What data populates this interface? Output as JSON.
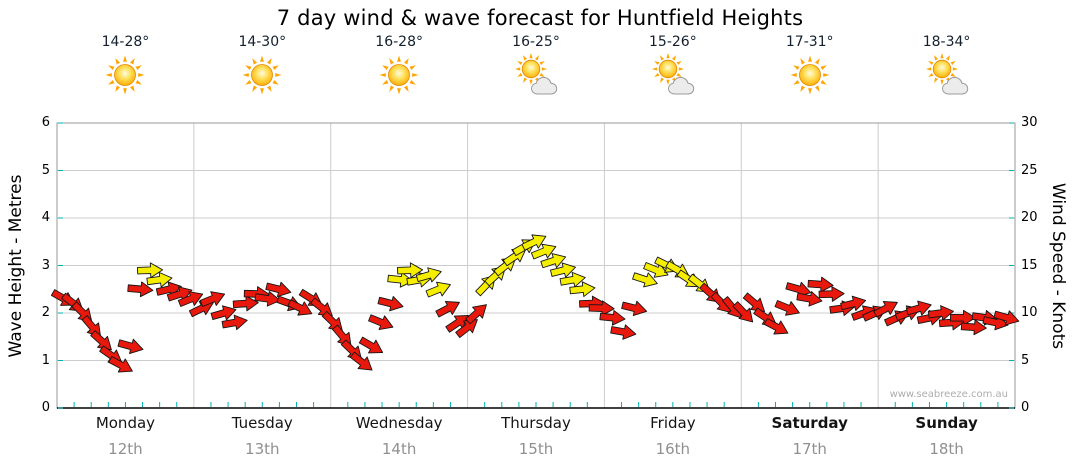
{
  "title": "7 day wind & wave forecast for Huntfield Heights",
  "watermark": "www.seabreeze.com.au",
  "colors": {
    "red": "#e8180c",
    "yellow": "#f6ee00",
    "grid": "#cccccc",
    "tick": "#00b3b3",
    "axis": "#000000",
    "border": "#999999",
    "date": "#909090",
    "temp": "#13202e"
  },
  "axes": {
    "left_label": "Wave Height - Metres",
    "right_label": "Wind Speed - Knots",
    "left_ticks": [
      "0",
      "1",
      "2",
      "3",
      "4",
      "5",
      "6"
    ],
    "right_ticks": [
      "0",
      "5",
      "10",
      "15",
      "20",
      "25",
      "30"
    ],
    "left_range": [
      0,
      6
    ],
    "right_range": [
      0,
      30
    ]
  },
  "days": [
    {
      "name": "Monday",
      "date": "12th",
      "temp": "14-28°",
      "icon": "sunny",
      "bold": false
    },
    {
      "name": "Tuesday",
      "date": "13th",
      "temp": "14-30°",
      "icon": "sunny",
      "bold": false
    },
    {
      "name": "Wednesday",
      "date": "14th",
      "temp": "16-28°",
      "icon": "sunny",
      "bold": false
    },
    {
      "name": "Thursday",
      "date": "15th",
      "temp": "16-25°",
      "icon": "partly",
      "bold": false
    },
    {
      "name": "Friday",
      "date": "16th",
      "temp": "15-26°",
      "icon": "partly",
      "bold": false
    },
    {
      "name": "Saturday",
      "date": "17th",
      "temp": "17-31°",
      "icon": "sunny",
      "bold": true
    },
    {
      "name": "Sunday",
      "date": "18th",
      "temp": "18-34°",
      "icon": "partly",
      "bold": true
    }
  ],
  "chart_data": {
    "type": "scatter",
    "marker": "wind-direction-arrow",
    "title": "7 day wind & wave forecast for Huntfield Heights",
    "categories": [
      "Monday 12th",
      "Tuesday 13th",
      "Wednesday 14th",
      "Thursday 15th",
      "Friday 16th",
      "Saturday 17th",
      "Sunday 18th"
    ],
    "ylabel_left": "Wave Height - Metres",
    "ylabel_right": "Wind Speed - Knots",
    "ylim_knots": [
      0,
      30
    ],
    "ylim_metres": [
      0,
      6
    ],
    "grid": true,
    "point_format": [
      "day_position_0to7",
      "wind_speed_knots",
      "color r=red y=yellow",
      "arrow_rotation_deg"
    ],
    "points": [
      [
        0.05,
        11.5,
        "r",
        30
      ],
      [
        0.12,
        11,
        "r",
        38
      ],
      [
        0.19,
        10,
        "r",
        45
      ],
      [
        0.26,
        8.5,
        "r",
        50
      ],
      [
        0.33,
        7,
        "r",
        42
      ],
      [
        0.4,
        5.5,
        "r",
        35
      ],
      [
        0.47,
        4.5,
        "r",
        28
      ],
      [
        0.54,
        6.5,
        "r",
        15
      ],
      [
        0.61,
        12.5,
        "r",
        5
      ],
      [
        0.68,
        14.5,
        "y",
        358
      ],
      [
        0.75,
        13.5,
        "y",
        352
      ],
      [
        0.82,
        12.5,
        "r",
        347
      ],
      [
        0.9,
        12,
        "r",
        342
      ],
      [
        0.98,
        11.5,
        "r",
        338
      ],
      [
        1.06,
        10.5,
        "r",
        334
      ],
      [
        1.14,
        11.5,
        "r",
        338
      ],
      [
        1.22,
        10,
        "r",
        344
      ],
      [
        1.3,
        9,
        "r",
        350
      ],
      [
        1.38,
        11,
        "r",
        356
      ],
      [
        1.46,
        12,
        "r",
        2
      ],
      [
        1.54,
        11.5,
        "r",
        8
      ],
      [
        1.62,
        12.5,
        "r",
        14
      ],
      [
        1.7,
        11,
        "r",
        20
      ],
      [
        1.78,
        10.5,
        "r",
        26
      ],
      [
        1.86,
        11.5,
        "r",
        32
      ],
      [
        1.94,
        10.5,
        "r",
        38
      ],
      [
        2.02,
        9,
        "r",
        44
      ],
      [
        2.09,
        7.5,
        "r",
        50
      ],
      [
        2.16,
        6,
        "r",
        44
      ],
      [
        2.23,
        4.8,
        "r",
        38
      ],
      [
        2.3,
        6.5,
        "r",
        30
      ],
      [
        2.37,
        9,
        "r",
        22
      ],
      [
        2.44,
        11,
        "r",
        14
      ],
      [
        2.51,
        13.5,
        "y",
        6
      ],
      [
        2.58,
        14.5,
        "y",
        358
      ],
      [
        2.65,
        13.5,
        "y",
        350
      ],
      [
        2.72,
        14,
        "y",
        344
      ],
      [
        2.79,
        12.5,
        "y",
        338
      ],
      [
        2.86,
        10.5,
        "r",
        332
      ],
      [
        2.93,
        9,
        "r",
        326
      ],
      [
        3.0,
        8.5,
        "r",
        322
      ],
      [
        3.07,
        10,
        "r",
        318
      ],
      [
        3.14,
        13,
        "y",
        314
      ],
      [
        3.21,
        14,
        "y",
        318
      ],
      [
        3.28,
        15,
        "y",
        322
      ],
      [
        3.35,
        16,
        "y",
        326
      ],
      [
        3.42,
        17,
        "y",
        330
      ],
      [
        3.49,
        17.5,
        "y",
        334
      ],
      [
        3.56,
        16.5,
        "y",
        338
      ],
      [
        3.63,
        15.5,
        "y",
        342
      ],
      [
        3.7,
        14.5,
        "y",
        346
      ],
      [
        3.77,
        13.5,
        "y",
        350
      ],
      [
        3.84,
        12.5,
        "y",
        354
      ],
      [
        3.91,
        11,
        "r",
        358
      ],
      [
        3.98,
        10.5,
        "r",
        2
      ],
      [
        4.06,
        9.5,
        "r",
        6
      ],
      [
        4.14,
        8,
        "r",
        10
      ],
      [
        4.22,
        10.5,
        "r",
        14
      ],
      [
        4.3,
        13.5,
        "y",
        18
      ],
      [
        4.38,
        14.5,
        "y",
        22
      ],
      [
        4.46,
        15,
        "y",
        26
      ],
      [
        4.54,
        14.5,
        "y",
        30
      ],
      [
        4.62,
        13.5,
        "y",
        34
      ],
      [
        4.7,
        13,
        "y",
        38
      ],
      [
        4.78,
        12,
        "r",
        42
      ],
      [
        4.86,
        11,
        "r",
        46
      ],
      [
        4.94,
        10.5,
        "r",
        50
      ],
      [
        5.02,
        10,
        "r",
        46
      ],
      [
        5.1,
        11,
        "r",
        40
      ],
      [
        5.18,
        9.5,
        "r",
        34
      ],
      [
        5.26,
        8.5,
        "r",
        28
      ],
      [
        5.34,
        10.5,
        "r",
        22
      ],
      [
        5.42,
        12.5,
        "r",
        16
      ],
      [
        5.5,
        11.5,
        "r",
        10
      ],
      [
        5.58,
        13,
        "r",
        4
      ],
      [
        5.66,
        12,
        "r",
        358
      ],
      [
        5.74,
        10.5,
        "r",
        352
      ],
      [
        5.82,
        11,
        "r",
        346
      ],
      [
        5.9,
        10,
        "r",
        340
      ],
      [
        5.98,
        10,
        "r",
        336
      ],
      [
        6.06,
        10.5,
        "r",
        332
      ],
      [
        6.14,
        9.5,
        "r",
        336
      ],
      [
        6.22,
        10,
        "r",
        340
      ],
      [
        6.3,
        10.5,
        "r",
        344
      ],
      [
        6.38,
        9.5,
        "r",
        348
      ],
      [
        6.46,
        10,
        "r",
        352
      ],
      [
        6.54,
        9,
        "r",
        356
      ],
      [
        6.62,
        9.5,
        "r",
        0
      ],
      [
        6.7,
        8.5,
        "r",
        4
      ],
      [
        6.78,
        9.5,
        "r",
        8
      ],
      [
        6.86,
        9,
        "r",
        12
      ],
      [
        6.94,
        9.5,
        "r",
        16
      ]
    ]
  }
}
